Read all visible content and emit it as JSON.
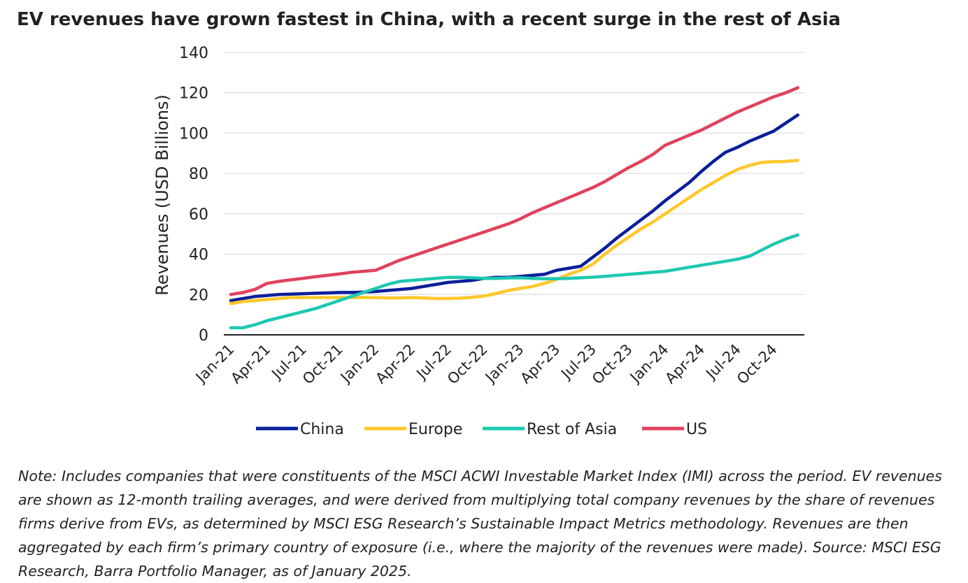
{
  "chart_data": {
    "type": "line",
    "title": "EV revenues have grown fastest in China, with a recent surge in the rest of Asia",
    "ylabel": "Revenues (USD Billions)",
    "categories": [
      "Jan-21",
      null,
      null,
      "Apr-21",
      null,
      null,
      "Jul-21",
      null,
      null,
      "Oct-21",
      null,
      null,
      "Jan-22",
      null,
      null,
      "Apr-22",
      null,
      null,
      "Jul-22",
      null,
      null,
      "Oct-22",
      null,
      null,
      "Jan-23",
      null,
      null,
      "Apr-23",
      null,
      null,
      "Jul-23",
      null,
      null,
      "Oct-23",
      null,
      null,
      "Jan-24",
      null,
      null,
      "Apr-24",
      null,
      null,
      "Jul-24",
      null,
      null,
      "Oct-24",
      null,
      null
    ],
    "series": [
      {
        "name": "China",
        "color": "#0a1f9a",
        "values": [
          17,
          18,
          19,
          19.5,
          20,
          20.2,
          20.4,
          20.6,
          20.8,
          21,
          21,
          21.2,
          21.5,
          22,
          22.5,
          23,
          24,
          25,
          26,
          26.5,
          27,
          28,
          28.5,
          28.5,
          29,
          29.5,
          30,
          32,
          33,
          34,
          38.5,
          43,
          48,
          52.5,
          57,
          61.5,
          66.5,
          71,
          75.5,
          81,
          86,
          90.5,
          93,
          96,
          98.5,
          101,
          105,
          109
        ]
      },
      {
        "name": "Europe",
        "color": "#ffc72c",
        "values": [
          15.5,
          16.5,
          17,
          17.5,
          18,
          18.5,
          18.5,
          18.5,
          18.5,
          18.5,
          18.5,
          18.5,
          18.5,
          18.3,
          18.3,
          18.5,
          18.3,
          18,
          18,
          18.2,
          18.6,
          19.2,
          20.5,
          22,
          23,
          24,
          25.5,
          27.5,
          30,
          32,
          35,
          40,
          44.5,
          48.5,
          52.5,
          56,
          60,
          64,
          68,
          72,
          75.5,
          79,
          82,
          84,
          85.5,
          85.8,
          86,
          86.5
        ]
      },
      {
        "name": "Rest of Asia",
        "color": "#1dc8b0",
        "values": [
          3.5,
          3.5,
          5,
          7,
          8.5,
          10,
          11.5,
          13,
          15,
          17,
          19,
          21,
          23,
          25,
          26.5,
          27,
          27.5,
          28,
          28.5,
          28.5,
          28.3,
          28,
          28,
          28.2,
          28.3,
          28,
          27.8,
          27.8,
          28,
          28.3,
          28.6,
          29,
          29.5,
          30,
          30.5,
          31,
          31.5,
          32.5,
          33.5,
          34.5,
          35.5,
          36.5,
          37.5,
          39,
          42,
          45,
          47.5,
          49.5
        ]
      },
      {
        "name": "US",
        "color": "#e0425e",
        "values": [
          20,
          21,
          22.5,
          25.5,
          26.5,
          27.3,
          28,
          28.8,
          29.5,
          30.2,
          31,
          31.5,
          32,
          34.5,
          37,
          39,
          41,
          43,
          45,
          47,
          49,
          51,
          53,
          55,
          57.5,
          60.5,
          63,
          65.5,
          68,
          70.5,
          73,
          76,
          79.5,
          83,
          86,
          89.5,
          94,
          96.5,
          99,
          101.5,
          104.5,
          107.5,
          110.5,
          113,
          115.5,
          118,
          120,
          122.5
        ]
      }
    ],
    "ylim": [
      0,
      140
    ],
    "yticks": [
      0,
      20,
      40,
      60,
      80,
      100,
      120,
      140
    ],
    "grid": true,
    "legend": "bottom",
    "note": "Note: Includes companies that were constituents of the MSCI ACWI Investable Market Index (IMI) across the period. EV revenues are shown as 12-month trailing averages, and were derived from multiplying total company revenues by the share of revenues firms derive from EVs, as determined by MSCI ESG Research’s Sustainable Impact Metrics methodology. Revenues are then aggregated by each firm’s primary country of exposure (i.e., where the majority of the revenues were made). Source: MSCI ESG Research, Barra Portfolio Manager, as of January 2025."
  }
}
